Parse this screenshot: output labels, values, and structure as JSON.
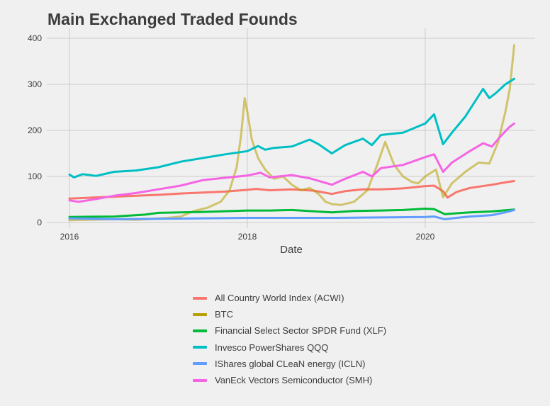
{
  "chart_data": {
    "type": "line",
    "title": "Main Exchanged Traded Founds",
    "xlabel": "Date",
    "ylabel": "",
    "x_ticks": [
      "2016",
      "2018",
      "2020"
    ],
    "y_ticks": [
      "0",
      "100",
      "200",
      "300",
      "400"
    ],
    "xlim": [
      2016,
      2021
    ],
    "ylim": [
      0,
      400
    ],
    "grid": true,
    "legend_position": "bottom",
    "series": [
      {
        "name": "All Country World Index (ACWI)",
        "color": "#F8766D",
        "points": [
          [
            2016.0,
            52
          ],
          [
            2016.25,
            54
          ],
          [
            2016.5,
            56
          ],
          [
            2016.75,
            58
          ],
          [
            2017.0,
            60
          ],
          [
            2017.25,
            63
          ],
          [
            2017.5,
            65
          ],
          [
            2017.75,
            67
          ],
          [
            2018.0,
            71
          ],
          [
            2018.1,
            73
          ],
          [
            2018.25,
            70
          ],
          [
            2018.5,
            72
          ],
          [
            2018.75,
            69
          ],
          [
            2018.95,
            62
          ],
          [
            2019.1,
            68
          ],
          [
            2019.3,
            72
          ],
          [
            2019.5,
            72
          ],
          [
            2019.75,
            74
          ],
          [
            2020.0,
            79
          ],
          [
            2020.1,
            80
          ],
          [
            2020.2,
            68
          ],
          [
            2020.25,
            54
          ],
          [
            2020.35,
            66
          ],
          [
            2020.5,
            75
          ],
          [
            2020.75,
            82
          ],
          [
            2020.9,
            87
          ],
          [
            2021.0,
            90
          ]
        ]
      },
      {
        "name": "BTC",
        "color": "#B79F00",
        "points": [
          [
            2016.0,
            5
          ],
          [
            2016.5,
            7
          ],
          [
            2016.75,
            6
          ],
          [
            2016.95,
            8
          ],
          [
            2017.1,
            10
          ],
          [
            2017.25,
            13
          ],
          [
            2017.4,
            25
          ],
          [
            2017.55,
            32
          ],
          [
            2017.7,
            45
          ],
          [
            2017.8,
            70
          ],
          [
            2017.88,
            120
          ],
          [
            2017.93,
            190
          ],
          [
            2017.97,
            270
          ],
          [
            2018.0,
            240
          ],
          [
            2018.05,
            180
          ],
          [
            2018.12,
            140
          ],
          [
            2018.2,
            115
          ],
          [
            2018.3,
            95
          ],
          [
            2018.4,
            100
          ],
          [
            2018.5,
            82
          ],
          [
            2018.6,
            70
          ],
          [
            2018.7,
            75
          ],
          [
            2018.8,
            62
          ],
          [
            2018.88,
            45
          ],
          [
            2018.95,
            40
          ],
          [
            2019.05,
            38
          ],
          [
            2019.2,
            45
          ],
          [
            2019.35,
            70
          ],
          [
            2019.45,
            120
          ],
          [
            2019.55,
            175
          ],
          [
            2019.65,
            125
          ],
          [
            2019.75,
            100
          ],
          [
            2019.85,
            88
          ],
          [
            2019.92,
            85
          ],
          [
            2020.0,
            100
          ],
          [
            2020.12,
            115
          ],
          [
            2020.2,
            55
          ],
          [
            2020.3,
            85
          ],
          [
            2020.45,
            110
          ],
          [
            2020.6,
            130
          ],
          [
            2020.72,
            128
          ],
          [
            2020.82,
            175
          ],
          [
            2020.9,
            240
          ],
          [
            2020.95,
            290
          ],
          [
            2021.0,
            385
          ]
        ]
      },
      {
        "name": "Financial Select Sector SPDR Fund (XLF)",
        "color": "#00BA38",
        "points": [
          [
            2016.0,
            12
          ],
          [
            2016.5,
            13
          ],
          [
            2016.85,
            17
          ],
          [
            2017.0,
            21
          ],
          [
            2017.5,
            23
          ],
          [
            2018.0,
            26
          ],
          [
            2018.25,
            26
          ],
          [
            2018.5,
            27
          ],
          [
            2018.95,
            22
          ],
          [
            2019.2,
            25
          ],
          [
            2019.5,
            26
          ],
          [
            2019.75,
            27
          ],
          [
            2020.0,
            30
          ],
          [
            2020.1,
            29
          ],
          [
            2020.22,
            18
          ],
          [
            2020.35,
            20
          ],
          [
            2020.5,
            22
          ],
          [
            2020.75,
            24
          ],
          [
            2021.0,
            28
          ]
        ]
      },
      {
        "name": "Invesco PowerShares QQQ",
        "color": "#00BFC4",
        "points": [
          [
            2016.0,
            104
          ],
          [
            2016.05,
            98
          ],
          [
            2016.15,
            105
          ],
          [
            2016.3,
            101
          ],
          [
            2016.5,
            110
          ],
          [
            2016.75,
            113
          ],
          [
            2017.0,
            120
          ],
          [
            2017.25,
            132
          ],
          [
            2017.5,
            140
          ],
          [
            2017.75,
            148
          ],
          [
            2018.0,
            155
          ],
          [
            2018.12,
            166
          ],
          [
            2018.2,
            158
          ],
          [
            2018.3,
            162
          ],
          [
            2018.5,
            165
          ],
          [
            2018.7,
            180
          ],
          [
            2018.8,
            170
          ],
          [
            2018.95,
            150
          ],
          [
            2019.1,
            168
          ],
          [
            2019.3,
            182
          ],
          [
            2019.4,
            168
          ],
          [
            2019.5,
            190
          ],
          [
            2019.75,
            195
          ],
          [
            2020.0,
            215
          ],
          [
            2020.1,
            235
          ],
          [
            2020.2,
            170
          ],
          [
            2020.3,
            195
          ],
          [
            2020.45,
            230
          ],
          [
            2020.55,
            260
          ],
          [
            2020.65,
            290
          ],
          [
            2020.72,
            270
          ],
          [
            2020.8,
            282
          ],
          [
            2020.9,
            300
          ],
          [
            2021.0,
            312
          ]
        ]
      },
      {
        "name": "IShares global CLeaN energy (ICLN)",
        "color": "#619CFF",
        "points": [
          [
            2016.0,
            9
          ],
          [
            2016.5,
            7
          ],
          [
            2017.0,
            8
          ],
          [
            2017.5,
            9
          ],
          [
            2018.0,
            10
          ],
          [
            2018.5,
            10
          ],
          [
            2019.0,
            10
          ],
          [
            2019.5,
            11
          ],
          [
            2020.0,
            12
          ],
          [
            2020.1,
            13
          ],
          [
            2020.22,
            7
          ],
          [
            2020.35,
            10
          ],
          [
            2020.5,
            13
          ],
          [
            2020.75,
            16
          ],
          [
            2020.9,
            22
          ],
          [
            2021.0,
            27
          ]
        ]
      },
      {
        "name": "VanEck Vectors Semiconductor (SMH)",
        "color": "#F564E3",
        "points": [
          [
            2016.0,
            48
          ],
          [
            2016.1,
            45
          ],
          [
            2016.3,
            51
          ],
          [
            2016.5,
            58
          ],
          [
            2016.75,
            64
          ],
          [
            2017.0,
            72
          ],
          [
            2017.25,
            80
          ],
          [
            2017.5,
            92
          ],
          [
            2017.75,
            97
          ],
          [
            2018.0,
            102
          ],
          [
            2018.15,
            108
          ],
          [
            2018.25,
            98
          ],
          [
            2018.5,
            103
          ],
          [
            2018.7,
            96
          ],
          [
            2018.95,
            82
          ],
          [
            2019.1,
            95
          ],
          [
            2019.3,
            110
          ],
          [
            2019.4,
            100
          ],
          [
            2019.5,
            118
          ],
          [
            2019.75,
            125
          ],
          [
            2020.0,
            142
          ],
          [
            2020.1,
            148
          ],
          [
            2020.2,
            110
          ],
          [
            2020.3,
            130
          ],
          [
            2020.5,
            155
          ],
          [
            2020.65,
            172
          ],
          [
            2020.75,
            165
          ],
          [
            2020.85,
            188
          ],
          [
            2020.95,
            208
          ],
          [
            2021.0,
            215
          ]
        ]
      }
    ]
  }
}
